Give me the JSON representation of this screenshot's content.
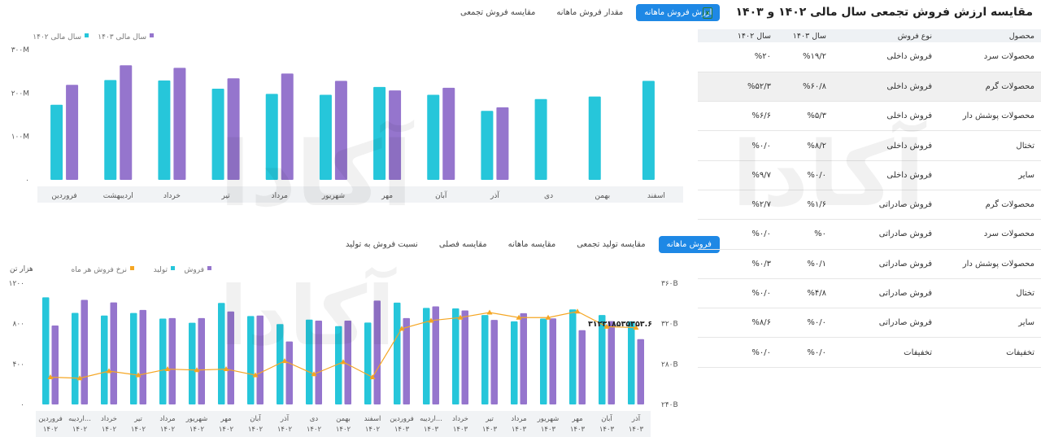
{
  "top_tabs": [
    "ارزش فروش ماهانه",
    "مقدار فروش ماهانه",
    "مقایسه فروش تجمعی"
  ],
  "bottom_tabs": [
    "فروش ماهانه",
    "مقایسه تولید تجمعی",
    "مقایسه ماهانه",
    "مقایسه فصلی",
    "نسبت فروش به تولید"
  ],
  "panel": {
    "title": "مقایسه ارزش فروش تجمعی سال مالی ۱۴۰۲ و ۱۴۰۳",
    "excel_icon": "excel-icon",
    "headers": [
      "محصول",
      "نوع فروش",
      "سال ۱۴۰۳",
      "سال ۱۴۰۲"
    ],
    "rows": [
      [
        "محصولات سرد",
        "فروش داخلی",
        "%۱۹/۲",
        "%۲۰"
      ],
      [
        "محصولات گرم",
        "فروش داخلی",
        "%۶۰/۸",
        "%۵۲/۳"
      ],
      [
        "محصولات پوشش دار",
        "فروش داخلی",
        "%۵/۳",
        "%۶/۶"
      ],
      [
        "تختال",
        "فروش داخلی",
        "%۸/۲",
        "%۰/۰"
      ],
      [
        "سایر",
        "فروش داخلی",
        "%۰/۰",
        "%۹/۷"
      ],
      [
        "محصولات گرم",
        "فروش صادراتی",
        "%۱/۶",
        "%۲/۷"
      ],
      [
        "محصولات سرد",
        "فروش صادراتی",
        "%۰",
        "%۰/۰"
      ],
      [
        "محصولات پوشش دار",
        "فروش صادراتی",
        "%۰/۱",
        "%۰/۳"
      ],
      [
        "تختال",
        "فروش صادراتی",
        "%۴/۸",
        "%۰/۰"
      ],
      [
        "سایر",
        "فروش صادراتی",
        "%۰/۰",
        "%۸/۶"
      ],
      [
        "تخفیفات",
        "تخفیفات",
        "%۰/۰",
        "%۰/۰"
      ]
    ],
    "highlight_row": 1
  },
  "colors": {
    "cyan": "#26c6da",
    "purple": "#9575cd",
    "orange": "#f5a623",
    "accent": "#1e88e5"
  },
  "chart_data": [
    {
      "type": "bar",
      "legend": [
        "سال مالی ۱۴۰۳",
        "سال مالی ۱۴۰۲"
      ],
      "categories": [
        "فروردین",
        "اردیبهشت",
        "خرداد",
        "تیر",
        "مرداد",
        "شهریور",
        "مهر",
        "آبان",
        "آذر",
        "دی",
        "بهمن",
        "اسفند"
      ],
      "series": [
        {
          "name": "سال مالی ۱۴۰۲",
          "values": [
            173,
            230,
            229,
            210,
            198,
            196,
            214,
            196,
            159,
            186,
            192,
            228
          ]
        },
        {
          "name": "سال مالی ۱۴۰۳",
          "values": [
            219,
            264,
            258,
            234,
            245,
            228,
            206,
            212,
            167,
            null,
            null,
            null
          ]
        }
      ],
      "yticks": [
        "۰",
        "۱۰۰M",
        "۲۰۰M",
        "۳۰۰M"
      ],
      "ylim": [
        0,
        300
      ],
      "grid": false,
      "legend_position": "top-left"
    },
    {
      "type": "bar",
      "legend": [
        "فروش",
        "تولید",
        "نرخ فروش هر ماه"
      ],
      "left_unit": "هزار تن",
      "categories": [
        [
          "فروردین",
          "۱۴۰۲"
        ],
        [
          "اردیبه...",
          "۱۴۰۲"
        ],
        [
          "خرداد",
          "۱۴۰۲"
        ],
        [
          "تیر",
          "۱۴۰۲"
        ],
        [
          "مرداد",
          "۱۴۰۲"
        ],
        [
          "شهریور",
          "۱۴۰۲"
        ],
        [
          "مهر",
          "۱۴۰۲"
        ],
        [
          "آبان",
          "۱۴۰۲"
        ],
        [
          "آذر",
          "۱۴۰۲"
        ],
        [
          "دی",
          "۱۴۰۲"
        ],
        [
          "بهمن",
          "۱۴۰۲"
        ],
        [
          "اسفند",
          "۱۴۰۲"
        ],
        [
          "فروردین",
          "۱۴۰۳"
        ],
        [
          "اردیبه...",
          "۱۴۰۳"
        ],
        [
          "خرداد",
          "۱۴۰۳"
        ],
        [
          "تیر",
          "۱۴۰۳"
        ],
        [
          "مرداد",
          "۱۴۰۳"
        ],
        [
          "شهریور",
          "۱۴۰۳"
        ],
        [
          "مهر",
          "۱۴۰۳"
        ],
        [
          "آبان",
          "۱۴۰۳"
        ],
        [
          "آذر",
          "۱۴۰۳"
        ]
      ],
      "series": [
        {
          "name": "تولید",
          "values": [
            1060,
            906,
            880,
            905,
            850,
            808,
            1005,
            875,
            795,
            840,
            775,
            810,
            1008,
            955,
            950,
            885,
            822,
            850,
            940,
            885,
            822
          ]
        },
        {
          "name": "فروش",
          "values": [
            781,
            1035,
            1010,
            935,
            855,
            855,
            920,
            880,
            623,
            830,
            830,
            1028,
            855,
            970,
            930,
            837,
            903,
            852,
            735,
            825,
            646
          ]
        },
        {
          "name": "نرخ فروش هر ماه",
          "values": [
            267,
            266,
            273,
            269,
            275,
            274,
            275,
            269,
            283,
            270,
            282,
            267,
            315,
            323,
            326,
            331,
            326,
            326,
            332,
            317,
            316
          ]
        }
      ],
      "left_yticks": [
        "۰",
        "۴۰۰",
        "۸۰۰",
        "۱۲۰۰"
      ],
      "right_yticks": [
        "۲۴۰B",
        "۲۸۰B",
        "۳۲۰B",
        "۳۶۰B"
      ],
      "left_ylim": [
        0,
        1200
      ],
      "right_ylim": [
        240,
        360
      ],
      "annotation": "۳۱۲۳۱۸۵۳۵۳۵۳.۶",
      "grid": false,
      "legend_position": "top-left"
    }
  ],
  "watermark": {
    "logo": "آکادا",
    "tagline": "برگزار کننده دوره های تحلیل بنیادی"
  }
}
